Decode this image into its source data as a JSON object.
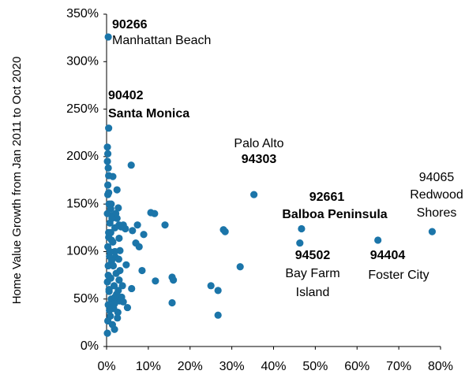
{
  "chart_data": {
    "type": "scatter",
    "y_label": "Home Value Growth from Jan 2011 to Oct 2020",
    "color": "#1b75a9",
    "x": [
      0.4,
      0.5,
      35.3,
      46.7,
      46.3,
      65,
      78,
      5.9,
      2.5,
      1.5,
      10.6,
      11.5,
      14,
      7.4,
      4.5,
      6.2,
      8.9,
      7,
      7.8,
      3.2,
      2.1,
      4.7,
      8.5,
      3.2,
      11.7,
      15.7,
      16,
      6,
      2.8,
      25,
      26.7,
      28,
      28.4,
      32,
      15.7,
      26.7,
      5,
      3.6,
      1.9,
      0.2,
      0.3,
      0.2,
      0.4,
      0.3,
      0.5,
      0.6,
      1,
      2.8,
      1.5,
      2.5,
      0.8,
      3,
      2,
      1,
      0.5,
      3,
      1.5,
      0.3,
      2,
      0.7,
      1.2,
      0.4,
      2.3,
      1,
      0.2,
      1.8,
      0.6,
      2.4,
      1.1,
      3.1,
      0.4,
      1.7,
      2.7,
      0.9,
      0.3,
      1.4,
      0.2,
      0.5,
      2.2,
      3.5,
      1.3,
      0.8,
      0.4,
      3,
      1.6,
      2.9,
      0.6,
      1.9,
      2.6,
      0.2,
      0.3,
      4,
      0.5,
      1.2,
      3.8,
      2,
      0.7,
      1.1,
      4
    ],
    "y": [
      326,
      230,
      160,
      124,
      109,
      112,
      121,
      191,
      165,
      179,
      141,
      140,
      128,
      128,
      124,
      122,
      118,
      109,
      105,
      101,
      94,
      86,
      80,
      80,
      69,
      73,
      70,
      61,
      59,
      64,
      59,
      123,
      121,
      84,
      46,
      33,
      41,
      52,
      18,
      210,
      203,
      195,
      188,
      170,
      162,
      150,
      145,
      146,
      138,
      135,
      130,
      128,
      125,
      120,
      115,
      114,
      110,
      105,
      100,
      95,
      90,
      85,
      77,
      72,
      68,
      64,
      58,
      55,
      50,
      48,
      44,
      40,
      36,
      32,
      27,
      23,
      14,
      120,
      140,
      126,
      135,
      100,
      75,
      70,
      85,
      92,
      60,
      45,
      30,
      140,
      160,
      128,
      180,
      112,
      64,
      52,
      38,
      150,
      47
    ],
    "xlim": [
      0,
      80
    ],
    "ylim": [
      0,
      350
    ],
    "xticks": [
      {
        "value": 0,
        "label": "0%"
      },
      {
        "value": 10,
        "label": "10%"
      },
      {
        "value": 20,
        "label": "20%"
      },
      {
        "value": 30,
        "label": "30%"
      },
      {
        "value": 40,
        "label": "40%"
      },
      {
        "value": 50,
        "label": "50%"
      },
      {
        "value": 60,
        "label": "60%"
      },
      {
        "value": 70,
        "label": "70%"
      },
      {
        "value": 80,
        "label": "80%"
      }
    ],
    "yticks": [
      {
        "value": 0,
        "label": "0%"
      },
      {
        "value": 50,
        "label": "50%"
      },
      {
        "value": 100,
        "label": "100%"
      },
      {
        "value": 150,
        "label": "150%"
      },
      {
        "value": 200,
        "label": "200%"
      },
      {
        "value": 250,
        "label": "250%"
      },
      {
        "value": 300,
        "label": "300%"
      },
      {
        "value": 350,
        "label": "350%"
      }
    ],
    "annotations": [
      {
        "lines": [
          {
            "text": "90266",
            "bold": true
          },
          {
            "text": "Manhattan Beach",
            "bold": false
          }
        ]
      },
      {
        "lines": [
          {
            "text": "90402",
            "bold": true
          },
          {
            "text": "Santa Monica",
            "bold": true
          }
        ]
      },
      {
        "lines": [
          {
            "text": "Palo Alto",
            "bold": false
          },
          {
            "text": "94303",
            "bold": true
          }
        ]
      },
      {
        "lines": [
          {
            "text": "92661",
            "bold": true
          },
          {
            "text": "Balboa Peninsula",
            "bold": true
          }
        ]
      },
      {
        "lines": [
          {
            "text": "94502",
            "bold": true
          },
          {
            "text": "Bay Farm",
            "bold": false
          },
          {
            "text": "Island",
            "bold": false
          }
        ]
      },
      {
        "lines": [
          {
            "text": "94404",
            "bold": true
          },
          {
            "text": "Foster City",
            "bold": false
          }
        ]
      },
      {
        "lines": [
          {
            "text": "94065",
            "bold": false
          },
          {
            "text": "Redwood",
            "bold": false
          },
          {
            "text": "Shores",
            "bold": false
          }
        ]
      }
    ]
  }
}
